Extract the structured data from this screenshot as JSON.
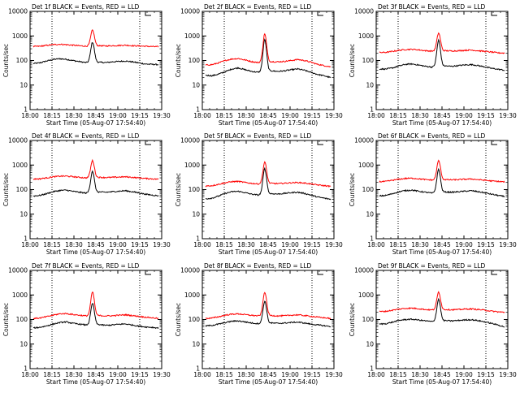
{
  "chart_data": [
    {
      "type": "line",
      "title": "Det 1f BLACK = Events, RED = LLD",
      "ylabel": "Counts/sec",
      "xlabel": "Start Time (05-Aug-07 17:54:40)",
      "x_ticks": [
        "18:00",
        "18:15",
        "18:30",
        "18:45",
        "19:00",
        "19:15",
        "19:30"
      ],
      "y_ticks": [
        "1",
        "10",
        "100",
        "1000",
        "10000"
      ],
      "ylim": [
        1,
        10000
      ],
      "yscale": "log",
      "markers": [
        "18:15",
        "19:15"
      ],
      "series": [
        {
          "color": "#000000",
          "values": [
            75,
            80,
            95,
            110,
            118,
            112,
            100,
            90,
            82,
            550,
            85,
            82,
            88,
            92,
            95,
            88,
            80,
            72,
            70,
            68
          ]
        },
        {
          "color": "#ff0000",
          "values": [
            370,
            380,
            410,
            440,
            460,
            440,
            420,
            400,
            380,
            1700,
            400,
            390,
            400,
            410,
            420,
            400,
            390,
            380,
            370,
            360
          ]
        }
      ]
    },
    {
      "type": "line",
      "title": "Det 2f BLACK = Events, RED = LLD",
      "ylabel": "Counts/sec",
      "xlabel": "Start Time (05-Aug-07 17:54:40)",
      "x_ticks": [
        "18:00",
        "18:15",
        "18:30",
        "18:45",
        "19:00",
        "19:15",
        "19:30"
      ],
      "y_ticks": [
        "1",
        "10",
        "100",
        "1000",
        "10000"
      ],
      "ylim": [
        1,
        10000
      ],
      "yscale": "log",
      "markers": [
        "18:15",
        "19:15"
      ],
      "series": [
        {
          "color": "#000000",
          "values": [
            25,
            24,
            28,
            35,
            45,
            50,
            42,
            36,
            33,
            700,
            38,
            36,
            38,
            42,
            45,
            40,
            33,
            27,
            24,
            20
          ]
        },
        {
          "color": "#ff0000",
          "values": [
            65,
            68,
            80,
            100,
            115,
            120,
            105,
            90,
            82,
            1200,
            90,
            88,
            92,
            100,
            110,
            100,
            85,
            70,
            62,
            55
          ]
        }
      ]
    },
    {
      "type": "line",
      "title": "Det 3f BLACK = Events, RED = LLD",
      "ylabel": "Counts/sec",
      "xlabel": "Start Time (05-Aug-07 17:54:40)",
      "x_ticks": [
        "18:00",
        "18:15",
        "18:30",
        "18:45",
        "19:00",
        "19:15",
        "19:30"
      ],
      "y_ticks": [
        "1",
        "10",
        "100",
        "1000",
        "10000"
      ],
      "ylim": [
        1,
        10000
      ],
      "yscale": "log",
      "markers": [
        "18:15",
        "19:15"
      ],
      "series": [
        {
          "color": "#000000",
          "values": [
            45,
            45,
            50,
            60,
            70,
            72,
            65,
            58,
            54,
            650,
            60,
            58,
            62,
            66,
            68,
            62,
            55,
            48,
            44,
            40
          ]
        },
        {
          "color": "#ff0000",
          "values": [
            210,
            215,
            235,
            260,
            280,
            285,
            270,
            250,
            240,
            1300,
            250,
            245,
            250,
            260,
            265,
            250,
            235,
            220,
            205,
            200
          ]
        }
      ]
    },
    {
      "type": "line",
      "title": "Det 4f BLACK = Events, RED = LLD",
      "ylabel": "Counts/sec",
      "xlabel": "Start Time (05-Aug-07 17:54:40)",
      "x_ticks": [
        "18:00",
        "18:15",
        "18:30",
        "18:45",
        "19:00",
        "19:15",
        "19:30"
      ],
      "y_ticks": [
        "1",
        "10",
        "100",
        "1000",
        "10000"
      ],
      "ylim": [
        1,
        10000
      ],
      "yscale": "log",
      "markers": [
        "18:15",
        "19:15"
      ],
      "series": [
        {
          "color": "#000000",
          "values": [
            55,
            58,
            68,
            82,
            92,
            95,
            85,
            78,
            72,
            550,
            80,
            78,
            82,
            86,
            90,
            82,
            74,
            65,
            60,
            56
          ]
        },
        {
          "color": "#ff0000",
          "values": [
            270,
            275,
            300,
            330,
            350,
            355,
            335,
            315,
            300,
            1500,
            315,
            310,
            315,
            325,
            330,
            315,
            300,
            285,
            275,
            265
          ]
        }
      ]
    },
    {
      "type": "line",
      "title": "Det 5f BLACK = Events, RED = LLD",
      "ylabel": "Counts/sec",
      "xlabel": "Start Time (05-Aug-07 17:54:40)",
      "x_ticks": [
        "18:00",
        "18:15",
        "18:30",
        "18:45",
        "19:00",
        "19:15",
        "19:30"
      ],
      "y_ticks": [
        "1",
        "10",
        "100",
        "1000",
        "10000"
      ],
      "ylim": [
        1,
        10000
      ],
      "yscale": "log",
      "markers": [
        "18:15",
        "19:15"
      ],
      "series": [
        {
          "color": "#000000",
          "values": [
            42,
            45,
            55,
            70,
            82,
            85,
            75,
            65,
            60,
            700,
            68,
            66,
            70,
            75,
            78,
            70,
            60,
            50,
            45,
            40
          ]
        },
        {
          "color": "#ff0000",
          "values": [
            140,
            145,
            165,
            190,
            210,
            215,
            195,
            180,
            170,
            1300,
            180,
            175,
            182,
            190,
            195,
            185,
            170,
            155,
            145,
            135
          ]
        }
      ]
    },
    {
      "type": "line",
      "title": "Det 6f BLACK = Events, RED = LLD",
      "ylabel": "Counts/sec",
      "xlabel": "Start Time (05-Aug-07 17:54:40)",
      "x_ticks": [
        "18:00",
        "18:15",
        "18:30",
        "18:45",
        "19:00",
        "19:15",
        "19:30"
      ],
      "y_ticks": [
        "1",
        "10",
        "100",
        "1000",
        "10000"
      ],
      "ylim": [
        1,
        10000
      ],
      "yscale": "log",
      "markers": [
        "18:15",
        "19:15"
      ],
      "series": [
        {
          "color": "#000000",
          "values": [
            55,
            58,
            68,
            82,
            92,
            95,
            85,
            78,
            72,
            650,
            80,
            78,
            82,
            86,
            90,
            82,
            74,
            65,
            58,
            52
          ]
        },
        {
          "color": "#ff0000",
          "values": [
            210,
            215,
            240,
            265,
            285,
            290,
            275,
            255,
            245,
            1500,
            255,
            250,
            255,
            265,
            270,
            255,
            240,
            225,
            215,
            205
          ]
        }
      ]
    },
    {
      "type": "line",
      "title": "Det 7f BLACK = Events, RED = LLD",
      "ylabel": "Counts/sec",
      "xlabel": "Start Time (05-Aug-07 17:54:40)",
      "x_ticks": [
        "18:00",
        "18:15",
        "18:30",
        "18:45",
        "19:00",
        "19:15",
        "19:30"
      ],
      "y_ticks": [
        "1",
        "10",
        "100",
        "1000",
        "10000"
      ],
      "ylim": [
        1,
        10000
      ],
      "yscale": "log",
      "markers": [
        "18:15",
        "19:15"
      ],
      "series": [
        {
          "color": "#000000",
          "values": [
            45,
            48,
            55,
            65,
            75,
            80,
            70,
            65,
            60,
            450,
            62,
            58,
            60,
            64,
            66,
            60,
            54,
            50,
            48,
            45
          ]
        },
        {
          "color": "#ff0000",
          "values": [
            110,
            115,
            130,
            150,
            170,
            175,
            160,
            150,
            140,
            1300,
            145,
            140,
            142,
            150,
            155,
            145,
            135,
            125,
            118,
            110
          ]
        }
      ]
    },
    {
      "type": "line",
      "title": "Det 8f BLACK = Events, RED = LLD",
      "ylabel": "Counts/sec",
      "xlabel": "Start Time (05-Aug-07 17:54:40)",
      "x_ticks": [
        "18:00",
        "18:15",
        "18:30",
        "18:45",
        "19:00",
        "19:15",
        "19:30"
      ],
      "y_ticks": [
        "1",
        "10",
        "100",
        "1000",
        "10000"
      ],
      "ylim": [
        1,
        10000
      ],
      "yscale": "log",
      "markers": [
        "18:15",
        "19:15"
      ],
      "series": [
        {
          "color": "#000000",
          "values": [
            55,
            58,
            65,
            75,
            85,
            88,
            80,
            72,
            68,
            550,
            72,
            70,
            72,
            76,
            78,
            72,
            65,
            60,
            56,
            52
          ]
        },
        {
          "color": "#ff0000",
          "values": [
            110,
            115,
            130,
            150,
            165,
            170,
            158,
            148,
            140,
            1300,
            145,
            140,
            142,
            150,
            155,
            145,
            135,
            125,
            118,
            110
          ]
        }
      ]
    },
    {
      "type": "line",
      "title": "Det 9f BLACK = Events, RED = LLD",
      "ylabel": "Counts/sec",
      "xlabel": "Start Time (05-Aug-07 17:54:40)",
      "x_ticks": [
        "18:00",
        "18:15",
        "18:30",
        "18:45",
        "19:00",
        "19:15",
        "19:30"
      ],
      "y_ticks": [
        "1",
        "10",
        "100",
        "1000",
        "10000"
      ],
      "ylim": [
        1,
        10000
      ],
      "yscale": "log",
      "markers": [
        "18:15",
        "19:15"
      ],
      "series": [
        {
          "color": "#000000",
          "values": [
            65,
            68,
            78,
            92,
            100,
            102,
            95,
            88,
            82,
            650,
            90,
            88,
            92,
            96,
            98,
            90,
            80,
            70,
            60,
            50
          ]
        },
        {
          "color": "#ff0000",
          "values": [
            210,
            215,
            240,
            265,
            285,
            290,
            275,
            255,
            245,
            1300,
            255,
            250,
            255,
            265,
            270,
            255,
            240,
            220,
            205,
            195
          ]
        }
      ]
    }
  ]
}
